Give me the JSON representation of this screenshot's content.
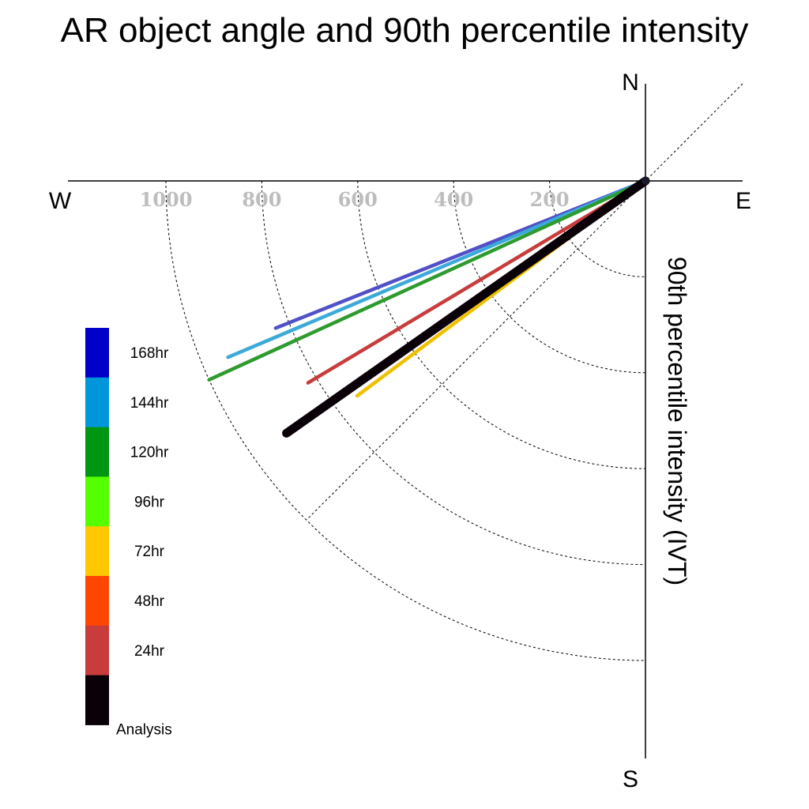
{
  "chart_data": {
    "type": "polar-vector",
    "title": "AR object angle and 90th percentile intensity",
    "radial_label": "90th percentile intensity (IVT)",
    "compass": {
      "north": "N",
      "south": "S",
      "east": "E",
      "west": "W"
    },
    "r_ticks": [
      200,
      400,
      600,
      800,
      1000
    ],
    "r_tick_labels": [
      "200",
      "400",
      "600",
      "800",
      "1000"
    ],
    "series": [
      {
        "name": "168hr",
        "color": "#5050c8",
        "intensity": 830,
        "angle_deg": 21.7
      },
      {
        "name": "144hr",
        "color": "#3caad8",
        "intensity": 945,
        "angle_deg": 22.9
      },
      {
        "name": "120hr",
        "color": "#2e9b2e",
        "intensity": 1000,
        "angle_deg": 24.5
      },
      {
        "name": "96hr",
        "color": "#55ff00",
        "intensity": null,
        "angle_deg": null
      },
      {
        "name": "72hr",
        "color": "#f0c000",
        "intensity": 750,
        "angle_deg": 36.7
      },
      {
        "name": "48hr",
        "color": "#ff4400",
        "intensity": 745,
        "angle_deg": 34.8
      },
      {
        "name": "24hr",
        "color": "#c83c3c",
        "intensity": 820,
        "angle_deg": 30.9
      },
      {
        "name": "Analysis",
        "color": "#0a0008",
        "intensity": 915,
        "angle_deg": 35.1
      }
    ],
    "legend": {
      "placement": "left",
      "entries": [
        {
          "label": "168hr",
          "color": "#0000c8"
        },
        {
          "label": "144hr",
          "color": "#0096dc"
        },
        {
          "label": "120hr",
          "color": "#009614"
        },
        {
          "label": "96hr",
          "color": "#55ff00"
        },
        {
          "label": "72hr",
          "color": "#ffc800"
        },
        {
          "label": "48hr",
          "color": "#ff4600"
        },
        {
          "label": "24hr",
          "color": "#c83c3c"
        },
        {
          "label": "Analysis",
          "color": "#0a0008"
        }
      ]
    }
  }
}
